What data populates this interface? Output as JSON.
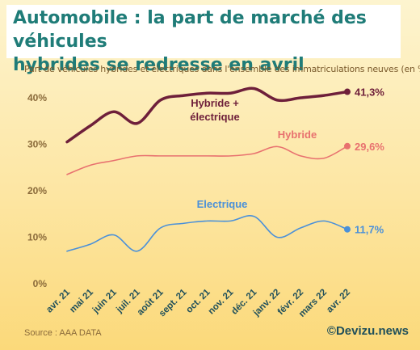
{
  "title_line1": "Automobile : la part de marché des véhicules",
  "title_line2": "hybrides se redresse en avril",
  "subtitle": "Part de véhicules hybrides et électriques dans l'ensemble des immatriculations neuves (en %)",
  "source": "Source : AAA DATA",
  "brand": "©Devizu.news",
  "chart_data": {
    "type": "line",
    "title": "Automobile : la part de marché des véhicules hybrides se redresse en avril",
    "subtitle": "Part de véhicules hybrides et électriques dans l'ensemble des immatriculations neuves (en %)",
    "categories": [
      "avr. 21",
      "mai 21",
      "juin 21",
      "juil. 21",
      "août 21",
      "sept. 21",
      "oct. 21",
      "nov. 21",
      "déc. 21",
      "janv. 22",
      "févr. 22",
      "mars 22",
      "avr. 22"
    ],
    "ytick_labels": [
      "0%",
      "10%",
      "20%",
      "30%",
      "40%"
    ],
    "ylim": [
      0,
      45
    ],
    "grid": false,
    "series": [
      {
        "name": "Hybride + électrique",
        "label_lines": [
          "Hybride +",
          "électrique"
        ],
        "color": "#6e1f3a",
        "end_label": "41,3%",
        "values": [
          30.5,
          34.0,
          37.0,
          34.5,
          39.5,
          40.5,
          41.0,
          41.0,
          42.0,
          39.5,
          40.0,
          40.5,
          41.3
        ]
      },
      {
        "name": "Hybride",
        "label_lines": [
          "Hybride"
        ],
        "color": "#e8716f",
        "end_label": "29,6%",
        "values": [
          23.5,
          25.5,
          26.5,
          27.5,
          27.5,
          27.5,
          27.5,
          27.5,
          28.0,
          29.5,
          27.5,
          27.0,
          29.6
        ]
      },
      {
        "name": "Electrique",
        "label_lines": [
          "Electrique"
        ],
        "color": "#4a90d9",
        "end_label": "11,7%",
        "values": [
          7.0,
          8.5,
          10.5,
          7.0,
          12.0,
          13.0,
          13.5,
          13.5,
          14.5,
          10.0,
          12.0,
          13.5,
          11.7
        ]
      }
    ]
  }
}
